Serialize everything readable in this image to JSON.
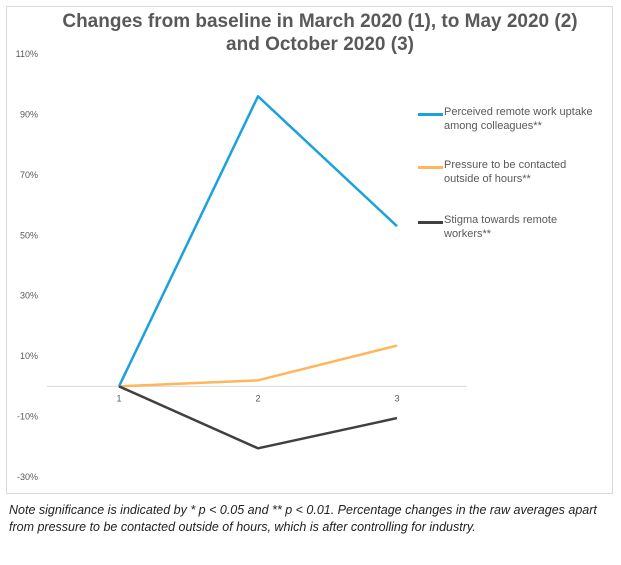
{
  "chart_data": {
    "type": "line",
    "title": "Changes from baseline in March 2020 (1), to May 2020 (2) and October 2020 (3)",
    "x": [
      "1",
      "2",
      "3"
    ],
    "y_ticks": [
      "110%",
      "90%",
      "70%",
      "50%",
      "30%",
      "10%",
      "-10%",
      "-30%"
    ],
    "ylim": [
      -0.3,
      1.1
    ],
    "grid": false,
    "legend_position": "right",
    "series": [
      {
        "name": "Perceived remote work uptake among colleagues**",
        "color": "#1ba1db",
        "values": [
          0,
          0.96,
          0.53
        ]
      },
      {
        "name": "Pressure to be contacted outside of hours**",
        "color": "#ffb65a",
        "values": [
          0,
          0.02,
          0.135
        ]
      },
      {
        "name": "Stigma towards remote workers**",
        "color": "#404040",
        "values": [
          0,
          -0.205,
          -0.105
        ]
      }
    ]
  },
  "note": "Note significance is indicated by * p < 0.05 and ** p < 0.01. Percentage changes in the raw averages apart from pressure to be contacted outside of hours, which is after controlling for industry."
}
